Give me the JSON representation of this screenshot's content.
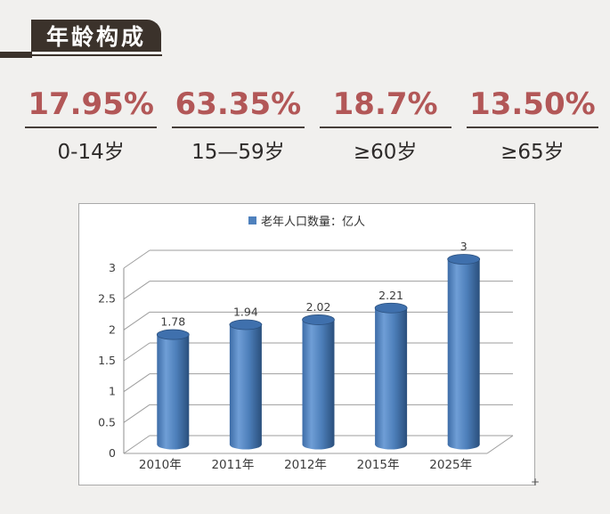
{
  "header": {
    "title": "年龄构成"
  },
  "stats": [
    {
      "value": "17.95%",
      "label": "0-14岁"
    },
    {
      "value": "63.35%",
      "label": "15—59岁"
    },
    {
      "value": "18.7%",
      "label": "≥60岁"
    },
    {
      "value": "13.50%",
      "label": "≥65岁"
    }
  ],
  "chart_data": {
    "type": "bar",
    "style": "3d-cylinder",
    "legend": "老年人口数量：亿人",
    "legend_position": "top",
    "categories": [
      "2010年",
      "2011年",
      "2012年",
      "2015年",
      "2025年"
    ],
    "values": [
      1.78,
      1.94,
      2.02,
      2.21,
      3
    ],
    "data_labels": [
      "1.78",
      "1.94",
      "2.02",
      "2.21",
      "3"
    ],
    "ylim": [
      0,
      3
    ],
    "ytick_step": 0.5,
    "yticks": [
      "0",
      "0.5",
      "1",
      "1.5",
      "2",
      "2.5",
      "3"
    ],
    "grid": true
  },
  "misc": {
    "resize_handle": "+"
  },
  "colors": {
    "badge_bg": "#3b322b",
    "accent_red": "#b25757",
    "bar_blue": "#4f81bd",
    "bar_blue_dark": "#2a4f7c",
    "panel_border": "#a9a9a9",
    "grid_line": "#9e9e9e",
    "page_bg": "#f1f0ee"
  }
}
